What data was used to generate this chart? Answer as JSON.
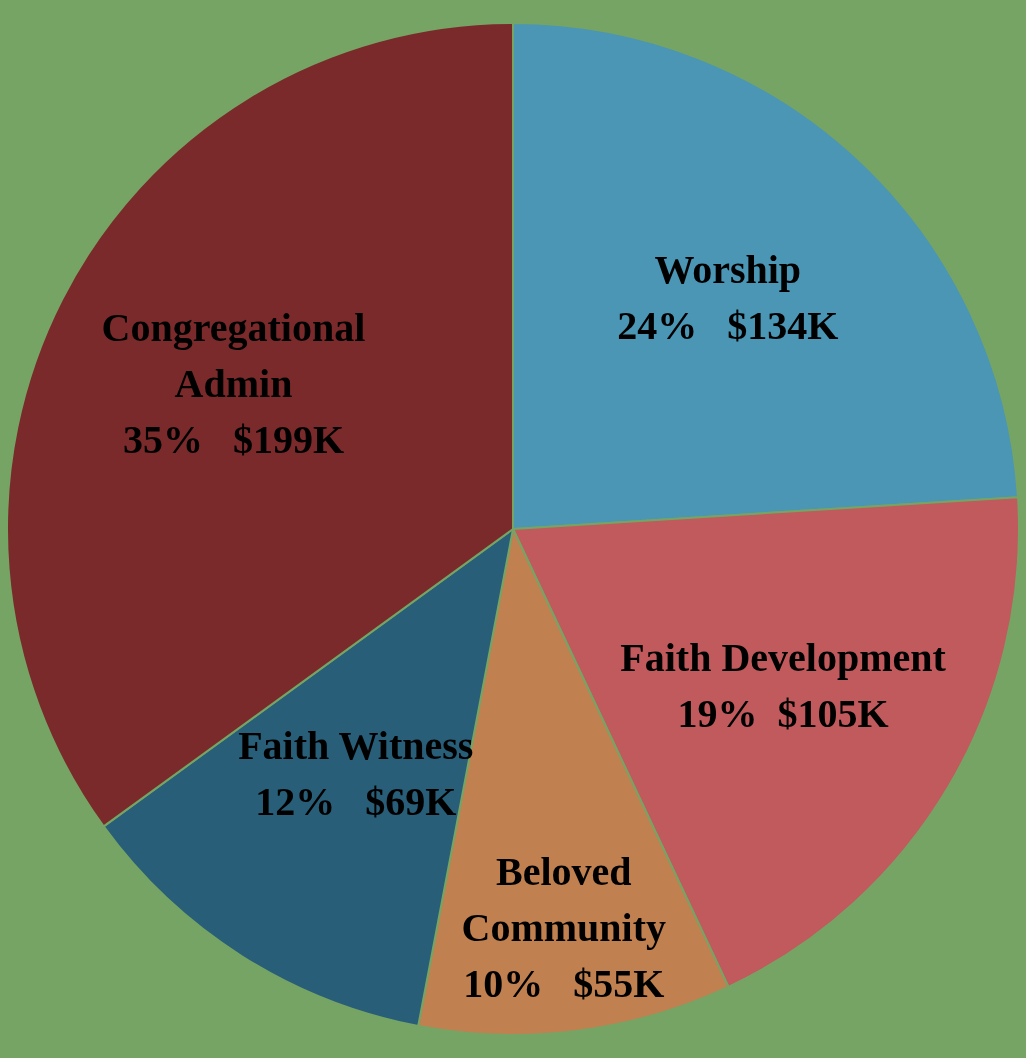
{
  "chart_data": {
    "type": "pie",
    "categories": [
      "Worship",
      "Faith Development",
      "Beloved Community",
      "Faith Witness",
      "Congregational Admin"
    ],
    "values": [
      24,
      19,
      10,
      12,
      35
    ],
    "colors": [
      "#4a96b4",
      "#c05a5c",
      "#c08050",
      "#285e78",
      "#7a2a2a"
    ],
    "value_labels": [
      "24%   $134K",
      "19%  $105K",
      "10%   $55K",
      "12%   $69K",
      "35%   $199K"
    ]
  }
}
